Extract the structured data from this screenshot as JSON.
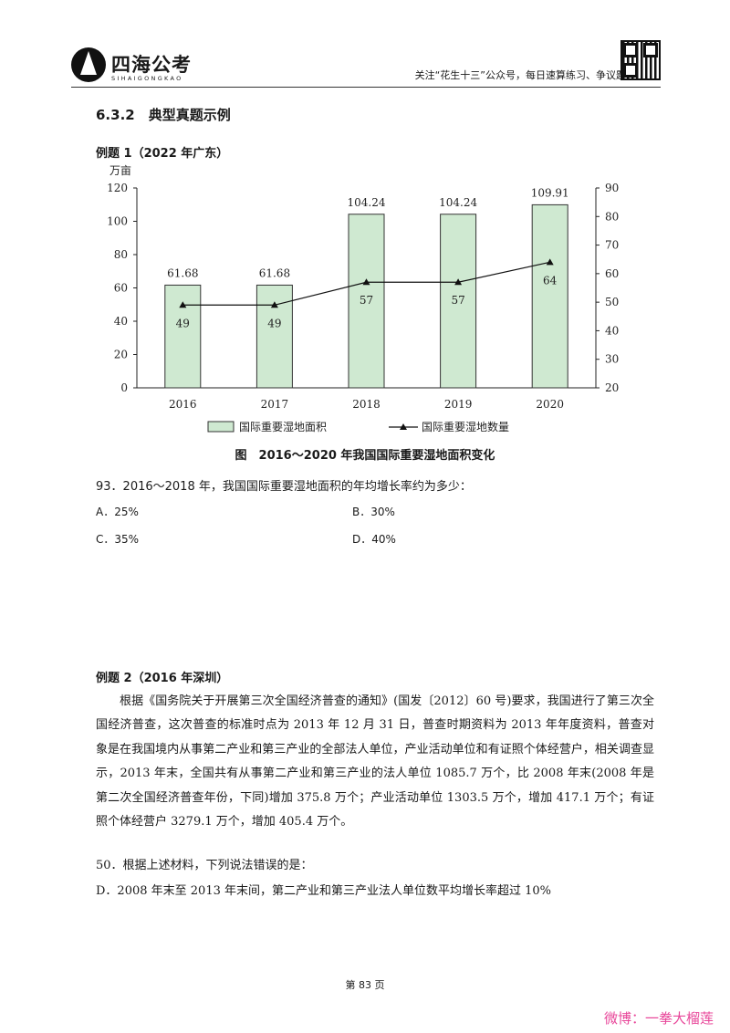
{
  "header": {
    "brand": "四海公考",
    "brand_sub": "SIHAIGONGKAO",
    "note": "关注“花生十三”公众号，每日速算练习、争议题讲解"
  },
  "section_title": "6.3.2　典型真题示例",
  "example1": {
    "label": "例题 1（2022 年广东）",
    "question": "93．2016～2018 年，我国国际重要湿地面积的年均增长率约为多少：",
    "options": {
      "A": "A．25%",
      "B": "B．30%",
      "C": "C．35%",
      "D": "D．40%"
    }
  },
  "chart_data": {
    "type": "bar",
    "title": "图　2016～2020 年我国国际重要湿地面积变化",
    "ylabel": "万亩",
    "categories": [
      "2016",
      "2017",
      "2018",
      "2019",
      "2020"
    ],
    "ylim": [
      0,
      120
    ],
    "y_ticks": [
      0,
      20,
      40,
      60,
      80,
      100,
      120
    ],
    "y2lim": [
      20,
      90
    ],
    "y2_ticks": [
      20,
      30,
      40,
      50,
      60,
      70,
      80,
      90
    ],
    "bar_color": "#cfe9d1",
    "series": [
      {
        "name": "国际重要湿地面积",
        "type": "bar",
        "axis": "left",
        "values": [
          61.68,
          61.68,
          104.24,
          104.24,
          109.91
        ],
        "labels": [
          "61.68",
          "61.68",
          "104.24",
          "104.24",
          "109.91"
        ]
      },
      {
        "name": "国际重要湿地数量",
        "type": "line",
        "axis": "right",
        "values": [
          49,
          49,
          57,
          57,
          64
        ],
        "labels": [
          "49",
          "49",
          "57",
          "57",
          "64"
        ]
      }
    ],
    "legend": "bottom"
  },
  "example2": {
    "label": "例题 2（2016 年深圳）",
    "paragraph": "根据《国务院关于开展第三次全国经济普查的通知》(国发〔2012〕60 号)要求，我国进行了第三次全国经济普查，这次普查的标准时点为 2013 年 12 月 31 日，普查时期资料为 2013 年年度资料，普查对象是在我国境内从事第二产业和第三产业的全部法人单位，产业活动单位和有证照个体经营户，相关调查显示，2013 年末，全国共有从事第二产业和第三产业的法人单位 1085.7 万个，比 2008 年末(2008 年是第二次全国经济普查年份，下同)增加 375.8 万个；产业活动单位 1303.5 万个，增加 417.1 万个；有证照个体经营户 3279.1 万个，增加 405.4 万个。",
    "question": "50．根据上述材料，下列说法错误的是：",
    "option_d": "D．2008 年末至 2013 年末间，第二产业和第三产业法人单位数平均增长率超过 10%"
  },
  "footer": {
    "page": "第 83 页",
    "weibo": "微博：一拳大榴莲"
  }
}
